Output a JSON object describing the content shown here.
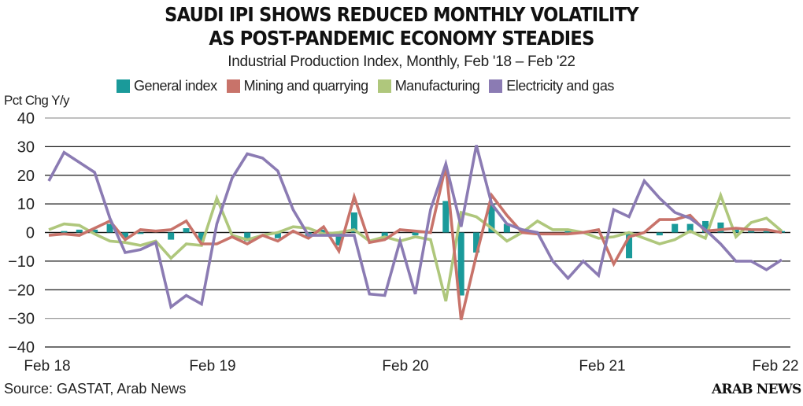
{
  "title_line1": "SAUDI IPI SHOWS REDUCED MONTHLY VOLATILITY",
  "title_line2": "AS POST-PANDEMIC ECONOMY STEADIES",
  "subtitle": "Industrial Production Index, Monthly, Feb '18 – Feb '22",
  "source": "Source: GASTAT, Arab News",
  "logo": "ARAB NEWS",
  "chart_data": {
    "type": "line",
    "title": "SAUDI IPI SHOWS REDUCED MONTHLY VOLATILITY AS POST-PANDEMIC ECONOMY STEADIES",
    "subtitle": "Industrial Production Index, Monthly, Feb '18 – Feb '22",
    "xlabel": "",
    "ylabel": "Pct Chg Y/y",
    "ylim": [
      -40,
      40
    ],
    "yticks": [
      40,
      30,
      20,
      10,
      0,
      -10,
      -20,
      -30,
      -40
    ],
    "grid": true,
    "legend_position": "top",
    "x_tick_labels": [
      "Feb 18",
      "Feb 19",
      "Feb 20",
      "Feb 21",
      "Feb 22"
    ],
    "x_tick_index": [
      0,
      12,
      24,
      36,
      48
    ],
    "n_points": 49,
    "series": [
      {
        "name": "General index",
        "type": "bar",
        "color": "#1a9a9a",
        "values": [
          0,
          0.5,
          1,
          1,
          3,
          -2,
          -0.5,
          0,
          -2.5,
          1.5,
          -3,
          0,
          0,
          -3,
          0,
          -2,
          0,
          -1.5,
          1,
          -4.5,
          7,
          0,
          -2.5,
          0,
          -1,
          0,
          11,
          -22,
          -7,
          10,
          3,
          0,
          0,
          0,
          0.5,
          0,
          0,
          0,
          -9,
          0,
          -1,
          3,
          3,
          4,
          3.5,
          1,
          1,
          1,
          0.5
        ]
      },
      {
        "name": "Mining and quarrying",
        "type": "line",
        "color": "#c8736a",
        "values": [
          -1,
          -0.5,
          -1,
          1.5,
          4,
          -2.5,
          1,
          0.5,
          1,
          4,
          -4,
          -4,
          -1.5,
          -4,
          -1,
          -3,
          0.5,
          -2,
          2,
          -6.5,
          12.5,
          -3.5,
          -2.5,
          1,
          0.5,
          0,
          23.5,
          -30.5,
          -8,
          13,
          6,
          0,
          -0.5,
          -0.5,
          -0.5,
          0,
          1,
          -11,
          -1.5,
          0,
          4.5,
          4.5,
          6,
          0.5,
          1,
          1.5,
          1,
          1,
          0
        ]
      },
      {
        "name": "Manufacturing",
        "type": "line",
        "color": "#afc77c",
        "values": [
          1,
          3,
          2.5,
          -0.5,
          -3,
          -3.5,
          -4.5,
          -3,
          -9,
          -4,
          -4.5,
          12,
          -1,
          -2.5,
          -1,
          0,
          2,
          1.5,
          -0.5,
          0,
          1,
          -3,
          -1.5,
          -3,
          -1.5,
          -2.5,
          -24,
          7,
          5.5,
          1.5,
          -3,
          0,
          4,
          1,
          1,
          0,
          -2,
          -1.5,
          0,
          -2,
          -4,
          -2.5,
          0.5,
          -2,
          13,
          -1.5,
          3.5,
          5,
          0.5
        ]
      },
      {
        "name": "Electricity and gas",
        "type": "line",
        "color": "#8b7bb3",
        "values": [
          18,
          28,
          24.5,
          21,
          5,
          -7,
          -6,
          -3.5,
          -26,
          -22,
          -25,
          3,
          19,
          27.5,
          26,
          21.5,
          8,
          -1,
          -1,
          -1,
          -1,
          -21.5,
          -22,
          -3,
          -21.5,
          8,
          24,
          2,
          30.5,
          10,
          3,
          1,
          0,
          -10,
          -16,
          -10,
          -15,
          8,
          5.5,
          18,
          12,
          7,
          5,
          1,
          -4,
          -10,
          -10,
          -13,
          -9.5
        ]
      }
    ]
  }
}
